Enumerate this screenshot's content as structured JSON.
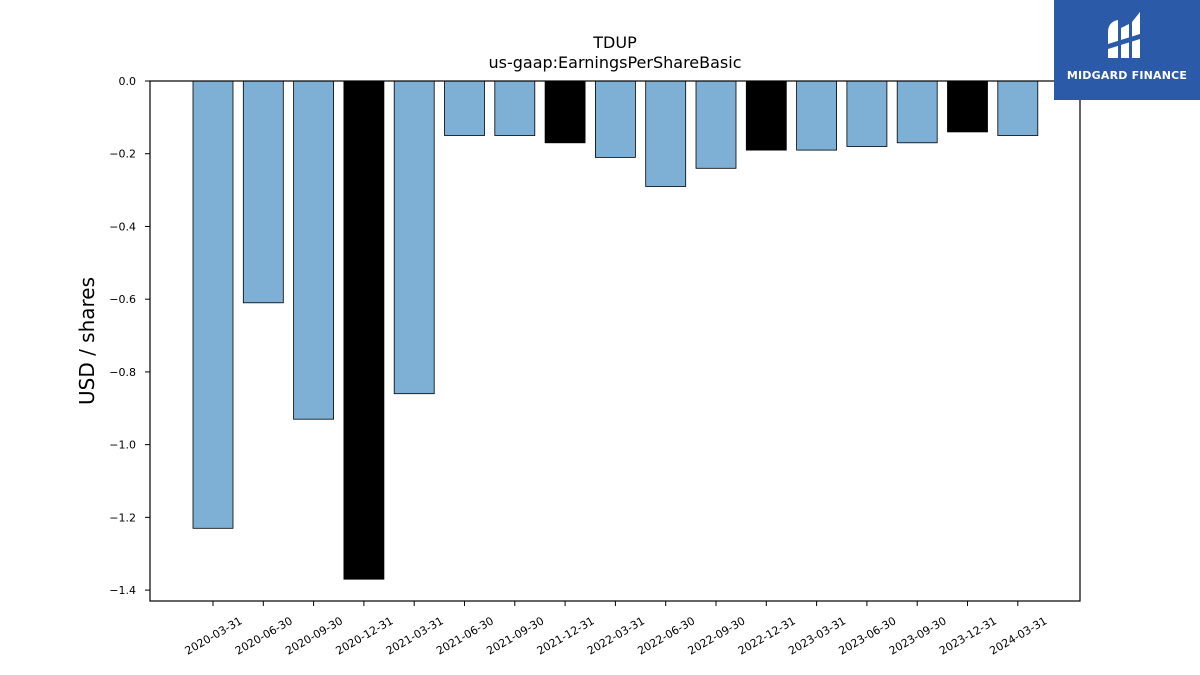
{
  "chart_data": {
    "type": "bar",
    "title": "TDUP",
    "subtitle": "us-gaap:EarningsPerShareBasic",
    "xlabel": "",
    "ylabel": "USD / shares",
    "ylim": [
      -1.43,
      0.0
    ],
    "yticks": [
      0.0,
      -0.2,
      -0.4,
      -0.6,
      -0.8,
      -1.0,
      -1.2,
      -1.4
    ],
    "ytick_labels": [
      "0.0",
      "−0.2",
      "−0.4",
      "−0.6",
      "−0.8",
      "−1.0",
      "−1.2",
      "−1.4"
    ],
    "grid": false,
    "categories": [
      "2020-03-31",
      "2020-06-30",
      "2020-09-30",
      "2020-12-31",
      "2021-03-31",
      "2021-06-30",
      "2021-09-30",
      "2021-12-31",
      "2022-03-31",
      "2022-06-30",
      "2022-09-30",
      "2022-12-31",
      "2023-03-31",
      "2023-06-30",
      "2023-09-30",
      "2023-12-31",
      "2024-03-31"
    ],
    "values": [
      -1.23,
      -0.61,
      -0.93,
      -1.37,
      -0.86,
      -0.15,
      -0.15,
      -0.17,
      -0.21,
      -0.29,
      -0.24,
      -0.19,
      -0.19,
      -0.18,
      -0.17,
      -0.14,
      -0.15
    ],
    "bar_colors": [
      "#7eb0d5",
      "#7eb0d5",
      "#7eb0d5",
      "#000000",
      "#7eb0d5",
      "#7eb0d5",
      "#7eb0d5",
      "#000000",
      "#7eb0d5",
      "#7eb0d5",
      "#7eb0d5",
      "#000000",
      "#7eb0d5",
      "#7eb0d5",
      "#7eb0d5",
      "#000000",
      "#7eb0d5"
    ]
  },
  "logo": {
    "text": "MIDGARD FINANCE",
    "background": "#2b5aa8"
  }
}
